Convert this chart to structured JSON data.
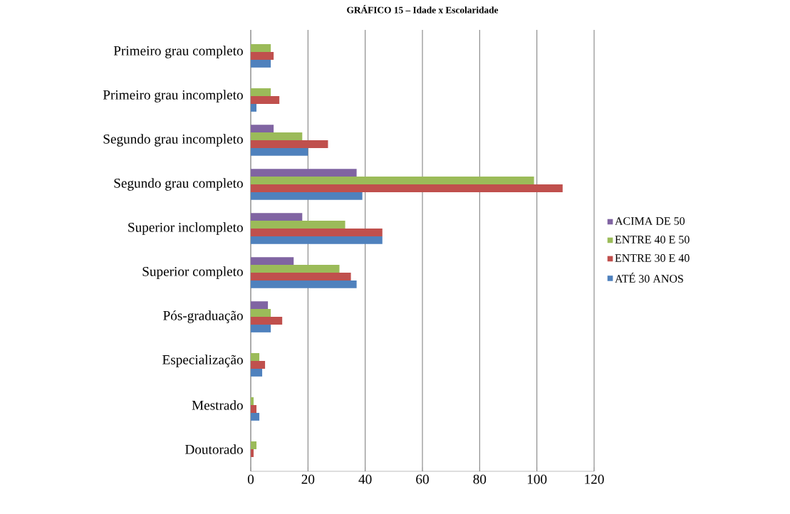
{
  "chart_data": {
    "type": "bar",
    "orientation": "horizontal",
    "title": "GRÁFICO 15 – Idade x Escolaridade",
    "categories": [
      "Primeiro grau completo",
      "Primeiro grau incompleto",
      "Segundo grau incompleto",
      "Segundo grau completo",
      "Superior inclompleto",
      "Superior completo",
      "Pós-graduação",
      "Especialização",
      "Mestrado",
      "Doutorado"
    ],
    "series": [
      {
        "name": "ATÉ 30 ANOS",
        "color": "#4f81bd",
        "values": [
          7,
          2,
          20,
          39,
          46,
          37,
          7,
          4,
          3,
          0
        ]
      },
      {
        "name": "ENTRE 30 E 40",
        "color": "#c0504d",
        "values": [
          8,
          10,
          27,
          109,
          46,
          35,
          11,
          5,
          2,
          1
        ]
      },
      {
        "name": "ENTRE 40 E 50",
        "color": "#9bbb59",
        "values": [
          7,
          7,
          18,
          99,
          33,
          31,
          7,
          3,
          1,
          2
        ]
      },
      {
        "name": "ACIMA DE 50",
        "color": "#8064a2",
        "values": [
          0,
          0,
          8,
          37,
          18,
          15,
          6,
          0,
          0,
          0
        ]
      }
    ],
    "xlim": [
      0,
      120
    ],
    "xticks": [
      0,
      20,
      40,
      60,
      80,
      100,
      120
    ],
    "grid": "x",
    "legend": "right"
  }
}
